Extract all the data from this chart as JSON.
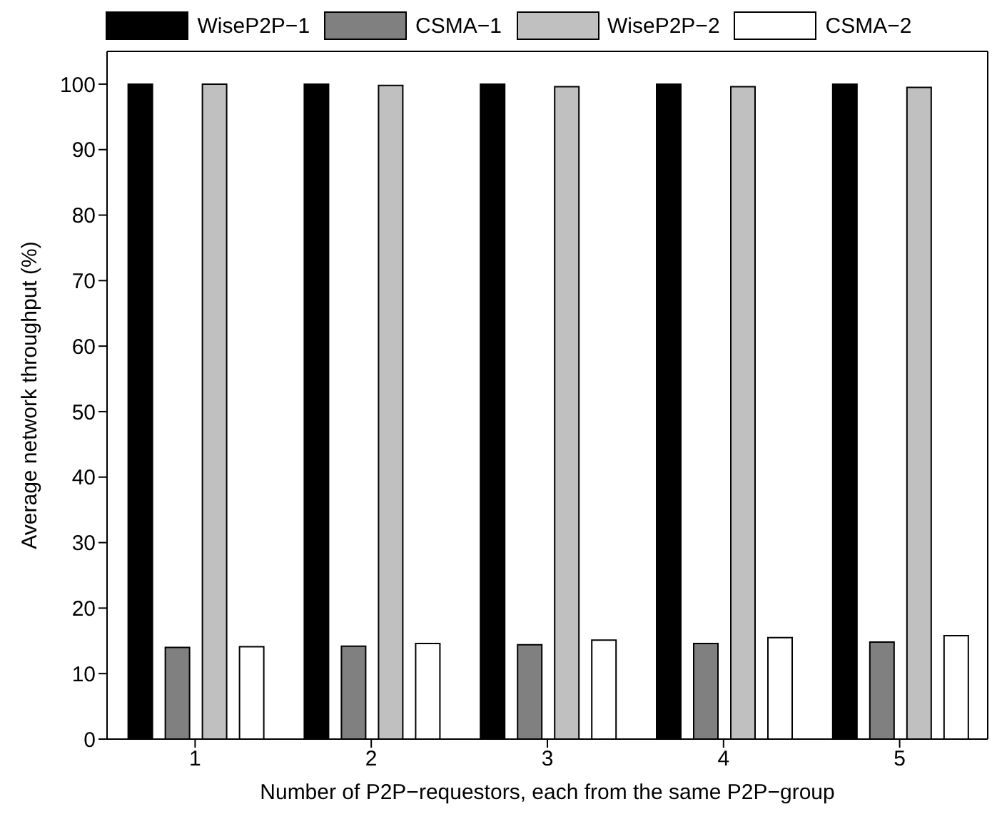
{
  "chart_data": {
    "type": "bar",
    "xlabel": "Number of P2P−requestors, each from the same P2P−group",
    "ylabel": "Average network throughput (%)",
    "categories": [
      "1",
      "2",
      "3",
      "4",
      "5"
    ],
    "series": [
      {
        "name": "WiseP2P−1",
        "color": "#000000",
        "values": [
          100,
          100,
          100,
          100,
          100
        ]
      },
      {
        "name": "CSMA−1",
        "color": "#808080",
        "values": [
          14.0,
          14.2,
          14.4,
          14.6,
          14.8
        ]
      },
      {
        "name": "WiseP2P−2",
        "color": "#c0c0c0",
        "values": [
          100,
          99.8,
          99.6,
          99.6,
          99.5
        ]
      },
      {
        "name": "CSMA−2",
        "color": "#ffffff",
        "values": [
          14.1,
          14.6,
          15.1,
          15.5,
          15.8
        ]
      }
    ],
    "ylim": [
      0,
      105
    ],
    "yticks": [
      0,
      10,
      20,
      30,
      40,
      50,
      60,
      70,
      80,
      90,
      100
    ],
    "grid": false,
    "legend": "top"
  }
}
